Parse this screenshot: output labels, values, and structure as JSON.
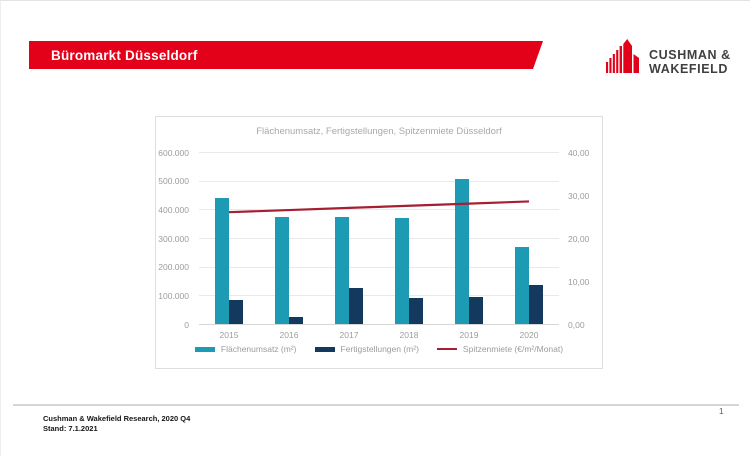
{
  "header": {
    "title": "Büromarkt Düsseldorf",
    "logo": {
      "line1": "CUSHMAN &",
      "line2": "WAKEFIELD"
    }
  },
  "chart_data": {
    "type": "combo-bar-line",
    "title": "Flächenumsatz, Fertigstellungen, Spitzenmiete Düsseldorf",
    "categories": [
      "2015",
      "2016",
      "2017",
      "2018",
      "2019",
      "2020"
    ],
    "series": [
      {
        "name": "Flächenumsatz (m²)",
        "type": "bar",
        "axis": "left",
        "color": "#1e9bb4",
        "values": [
          440000,
          375000,
          375000,
          370000,
          505000,
          270000
        ]
      },
      {
        "name": "Fertigstellungen (m²)",
        "type": "bar",
        "axis": "left",
        "color": "#14395e",
        "values": [
          85000,
          25000,
          125000,
          92000,
          95000,
          135000
        ]
      },
      {
        "name": "Spitzenmiete (€/m²/Monat)",
        "type": "line",
        "axis": "right",
        "color": "#a51e32",
        "values": [
          26.0,
          26.5,
          27.0,
          27.5,
          28.0,
          28.5
        ]
      }
    ],
    "left_axis": {
      "min": 0,
      "max": 600000,
      "step": 100000,
      "tick_labels": [
        "0",
        "100.000",
        "200.000",
        "300.000",
        "400.000",
        "500.000",
        "600.000"
      ]
    },
    "right_axis": {
      "min": 0,
      "max": 40,
      "step": 10,
      "tick_labels": [
        "0,00",
        "10,00",
        "20,00",
        "30,00",
        "40,00"
      ]
    },
    "grid": true,
    "legend_position": "bottom"
  },
  "footer": {
    "source_line1": "Cushman & Wakefield Research, 2020 Q4",
    "source_line2": "Stand: 7.1.2021",
    "page_number": "1"
  },
  "colors": {
    "banner_red": "#e30019",
    "bar_teal": "#1e9bb4",
    "bar_navy": "#14395e",
    "line_red": "#a51e32"
  }
}
